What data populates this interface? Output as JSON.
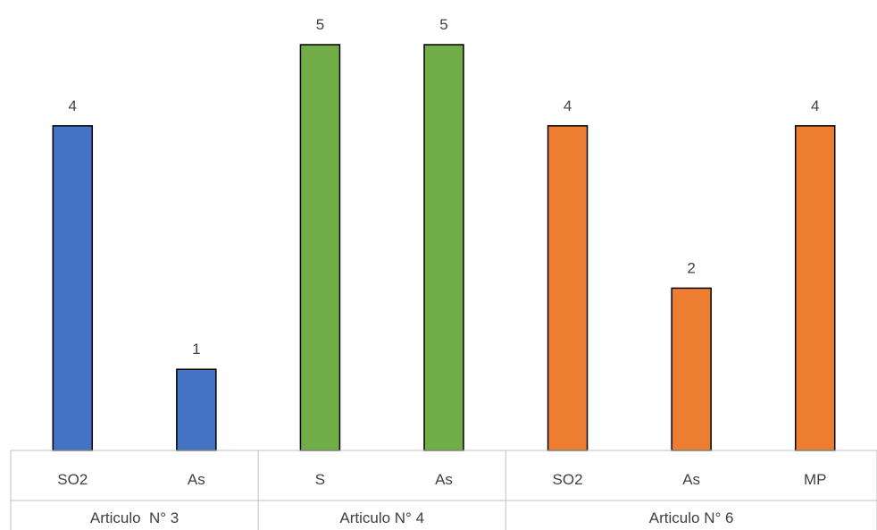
{
  "chart_data": {
    "type": "bar",
    "title": "",
    "xlabel": "",
    "ylabel": "",
    "ylim": [
      0,
      5
    ],
    "grid": false,
    "legend": "none",
    "groups": [
      {
        "label": "Articulo  N° 3",
        "color": "#4472c4",
        "bars": [
          {
            "category": "SO2",
            "value": 4
          },
          {
            "category": "As",
            "value": 1
          }
        ]
      },
      {
        "label": "Articulo N° 4",
        "color": "#70ad47",
        "bars": [
          {
            "category": "S",
            "value": 5
          },
          {
            "category": "As",
            "value": 5
          }
        ]
      },
      {
        "label": "Articulo N° 6",
        "color": "#ed7d31",
        "bars": [
          {
            "category": "SO2",
            "value": 4
          },
          {
            "category": "As",
            "value": 2
          },
          {
            "category": "MP",
            "value": 4
          }
        ]
      }
    ]
  }
}
